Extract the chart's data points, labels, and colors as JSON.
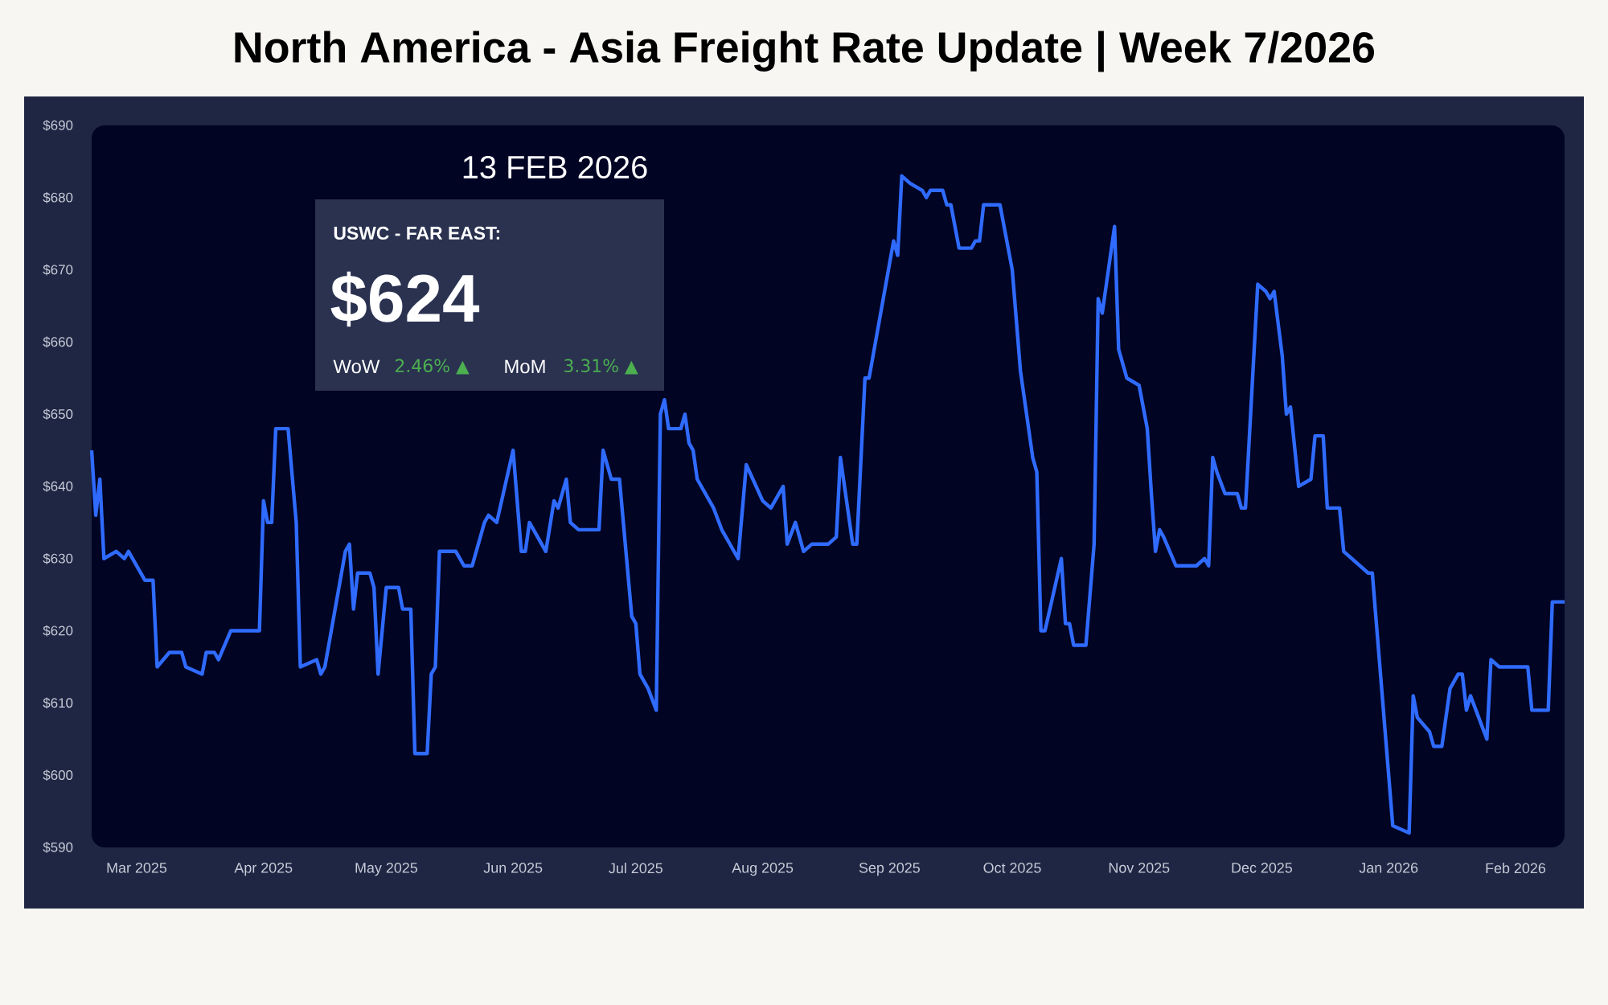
{
  "chart_data": {
    "type": "line",
    "title": "North America - Asia Freight Rate Update | Week 7/2026",
    "annotations": [
      "13 FEB 2026",
      "USWC - FAR EAST:",
      "$624",
      "WoW",
      "2.46% ▲",
      "MoM",
      "3.31% ▲"
    ],
    "x": [
      "2025-02-18",
      "2025-02-19",
      "2025-02-20",
      "2025-02-21",
      "2025-02-24",
      "2025-02-26",
      "2025-02-27",
      "2025-03-03",
      "2025-03-05",
      "2025-03-06",
      "2025-03-09",
      "2025-03-12",
      "2025-03-13",
      "2025-03-17",
      "2025-03-18",
      "2025-03-20",
      "2025-03-21",
      "2025-03-24",
      "2025-03-31",
      "2025-04-01",
      "2025-04-02",
      "2025-04-03",
      "2025-04-04",
      "2025-04-07",
      "2025-04-09",
      "2025-04-10",
      "2025-04-14",
      "2025-04-15",
      "2025-04-16",
      "2025-04-21",
      "2025-04-22",
      "2025-04-23",
      "2025-04-24",
      "2025-04-27",
      "2025-04-28",
      "2025-04-29",
      "2025-05-01",
      "2025-05-04",
      "2025-05-05",
      "2025-05-07",
      "2025-05-08",
      "2025-05-11",
      "2025-05-12",
      "2025-05-13",
      "2025-05-14",
      "2025-05-18",
      "2025-05-20",
      "2025-05-22",
      "2025-05-25",
      "2025-05-26",
      "2025-05-28",
      "2025-06-01",
      "2025-06-03",
      "2025-06-04",
      "2025-06-05",
      "2025-06-09",
      "2025-06-11",
      "2025-06-12",
      "2025-06-14",
      "2025-06-15",
      "2025-06-17",
      "2025-06-22",
      "2025-06-23",
      "2025-06-25",
      "2025-06-27",
      "2025-06-30",
      "2025-07-01",
      "2025-07-02",
      "2025-07-04",
      "2025-07-06",
      "2025-07-07",
      "2025-07-08",
      "2025-07-09",
      "2025-07-12",
      "2025-07-13",
      "2025-07-14",
      "2025-07-15",
      "2025-07-16",
      "2025-07-18",
      "2025-07-20",
      "2025-07-22",
      "2025-07-26",
      "2025-07-28",
      "2025-08-01",
      "2025-08-03",
      "2025-08-06",
      "2025-08-07",
      "2025-08-09",
      "2025-08-11",
      "2025-08-13",
      "2025-08-17",
      "2025-08-19",
      "2025-08-20",
      "2025-08-23",
      "2025-08-24",
      "2025-08-26",
      "2025-08-27",
      "2025-09-02",
      "2025-09-03",
      "2025-09-04",
      "2025-09-06",
      "2025-09-09",
      "2025-09-10",
      "2025-09-11",
      "2025-09-14",
      "2025-09-15",
      "2025-09-16",
      "2025-09-18",
      "2025-09-21",
      "2025-09-22",
      "2025-09-23",
      "2025-09-24",
      "2025-09-28",
      "2025-10-01",
      "2025-10-03",
      "2025-10-06",
      "2025-10-07",
      "2025-10-08",
      "2025-10-09",
      "2025-10-13",
      "2025-10-14",
      "2025-10-15",
      "2025-10-16",
      "2025-10-19",
      "2025-10-21",
      "2025-10-22",
      "2025-10-23",
      "2025-10-26",
      "2025-10-27",
      "2025-10-29",
      "2025-11-01",
      "2025-11-03",
      "2025-11-04",
      "2025-11-05",
      "2025-11-06",
      "2025-11-07",
      "2025-11-10",
      "2025-11-15",
      "2025-11-17",
      "2025-11-18",
      "2025-11-19",
      "2025-11-20",
      "2025-11-22",
      "2025-11-25",
      "2025-11-26",
      "2025-11-27",
      "2025-11-30",
      "2025-12-02",
      "2025-12-03",
      "2025-12-04",
      "2025-12-06",
      "2025-12-07",
      "2025-12-08",
      "2025-12-10",
      "2025-12-13",
      "2025-12-14",
      "2025-12-16",
      "2025-12-17",
      "2025-12-20",
      "2025-12-21",
      "2025-12-27",
      "2025-12-28",
      "2026-01-02",
      "2026-01-06",
      "2026-01-07",
      "2026-01-08",
      "2026-01-11",
      "2026-01-12",
      "2026-01-14",
      "2026-01-16",
      "2026-01-18",
      "2026-01-19",
      "2026-01-20",
      "2026-01-21",
      "2026-01-25",
      "2026-01-26",
      "2026-01-28",
      "2026-02-04",
      "2026-02-05",
      "2026-02-09",
      "2026-02-10",
      "2026-02-13"
    ],
    "values": [
      645,
      636,
      641,
      630,
      631,
      630,
      631,
      627,
      627,
      615,
      617,
      617,
      615,
      614,
      617,
      617,
      616,
      620,
      620,
      638,
      635,
      635,
      648,
      648,
      635,
      615,
      616,
      614,
      615,
      631,
      632,
      623,
      628,
      628,
      626,
      614,
      626,
      626,
      623,
      623,
      603,
      603,
      614,
      615,
      631,
      631,
      629,
      629,
      635,
      636,
      635,
      645,
      631,
      631,
      635,
      631,
      638,
      637,
      641,
      635,
      634,
      634,
      645,
      641,
      641,
      622,
      621,
      614,
      612,
      609,
      650,
      652,
      648,
      648,
      650,
      646,
      645,
      641,
      639,
      637,
      634,
      630,
      643,
      638,
      637,
      640,
      632,
      635,
      631,
      632,
      632,
      633,
      644,
      632,
      632,
      655,
      655,
      674,
      672,
      683,
      682,
      681,
      680,
      681,
      681,
      679,
      679,
      673,
      673,
      674,
      674,
      679,
      679,
      670,
      656,
      644,
      642,
      620,
      620,
      630,
      621,
      621,
      618,
      618,
      632,
      666,
      664,
      676,
      659,
      655,
      654,
      648,
      639,
      631,
      634,
      633,
      629,
      629,
      630,
      629,
      644,
      642,
      639,
      639,
      637,
      637,
      668,
      667,
      666,
      667,
      658,
      650,
      651,
      640,
      641,
      647,
      647,
      637,
      637,
      631,
      628,
      628,
      593,
      592,
      611,
      608,
      606,
      604,
      604,
      612,
      614,
      614,
      609,
      611,
      605,
      616,
      615,
      615,
      609,
      609,
      624,
      624
    ],
    "color": "#2f6bff",
    "xlim": [
      "2025-02-18",
      "2026-02-13"
    ],
    "ylim": [
      590,
      690
    ],
    "xticks": [
      {
        "value": "2025-03-01",
        "label": "Mar 2025"
      },
      {
        "value": "2025-04-01",
        "label": "Apr 2025"
      },
      {
        "value": "2025-05-01",
        "label": "May 2025"
      },
      {
        "value": "2025-06-01",
        "label": "Jun 2025"
      },
      {
        "value": "2025-07-01",
        "label": "Jul 2025"
      },
      {
        "value": "2025-08-01",
        "label": "Aug 2025"
      },
      {
        "value": "2025-09-01",
        "label": "Sep 2025"
      },
      {
        "value": "2025-10-01",
        "label": "Oct 2025"
      },
      {
        "value": "2025-11-01",
        "label": "Nov 2025"
      },
      {
        "value": "2025-12-01",
        "label": "Dec 2025"
      },
      {
        "value": "2026-01-01",
        "label": "Jan 2026"
      },
      {
        "value": "2026-02-01",
        "label": "Feb 2026"
      }
    ],
    "yticks": [
      {
        "value": 590,
        "label": "$590"
      },
      {
        "value": 600,
        "label": "$600"
      },
      {
        "value": 610,
        "label": "$610"
      },
      {
        "value": 620,
        "label": "$620"
      },
      {
        "value": 630,
        "label": "$630"
      },
      {
        "value": 640,
        "label": "$640"
      },
      {
        "value": 650,
        "label": "$650"
      },
      {
        "value": 660,
        "label": "$660"
      },
      {
        "value": 670,
        "label": "$670"
      },
      {
        "value": 680,
        "label": "$680"
      },
      {
        "value": 690,
        "label": "$690"
      }
    ]
  }
}
